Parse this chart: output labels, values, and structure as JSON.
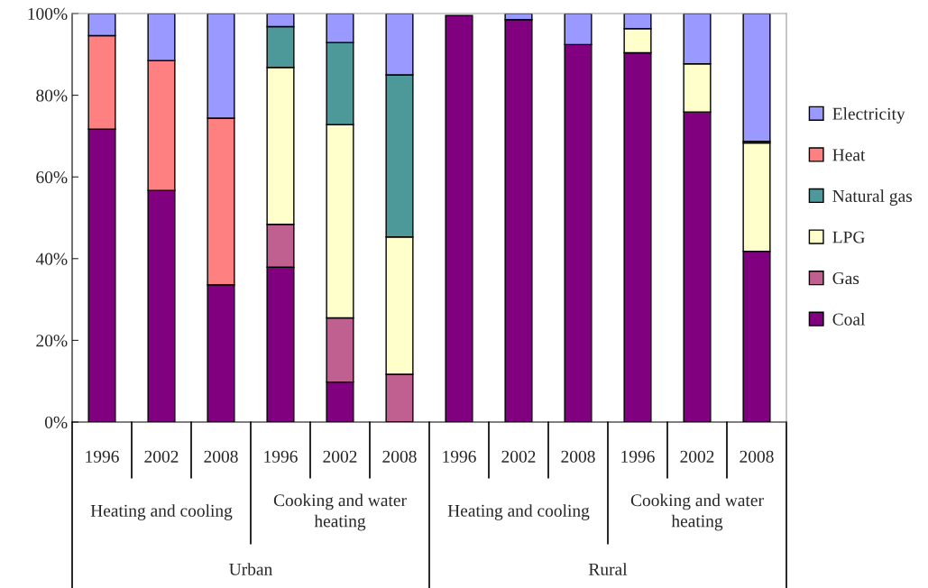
{
  "chart_data": {
    "type": "bar",
    "stacked": true,
    "categories": [
      "1996",
      "2002",
      "2008",
      "1996",
      "2002",
      "2008",
      "1996",
      "2002",
      "2008",
      "1996",
      "2002",
      "2008"
    ],
    "series": [
      {
        "name": "Coal",
        "color": "#800080",
        "values": [
          71.7,
          56.7,
          33.6,
          37.9,
          9.8,
          0,
          99.5,
          98.5,
          92.4,
          90.4,
          75.9,
          41.8
        ]
      },
      {
        "name": "Gas",
        "color": "#c06090",
        "values": [
          0,
          0,
          0,
          10.5,
          15.7,
          11.7,
          0,
          0,
          0,
          0,
          0,
          0
        ]
      },
      {
        "name": "LPG",
        "color": "#ffffcc",
        "values": [
          0,
          0,
          0,
          38.4,
          47.3,
          33.6,
          0,
          0,
          0,
          5.9,
          11.8,
          26.5
        ]
      },
      {
        "name": "Natural gas",
        "color": "#4d9999",
        "values": [
          0,
          0,
          0,
          10.0,
          20.1,
          39.7,
          0,
          0,
          0,
          0,
          0,
          0.4
        ]
      },
      {
        "name": "Heat",
        "color": "#ff8080",
        "values": [
          22.9,
          31.8,
          40.8,
          0,
          0,
          0,
          0,
          0,
          0,
          0,
          0,
          0
        ]
      },
      {
        "name": "Electricity",
        "color": "#9999ff",
        "values": [
          5.4,
          11.5,
          25.6,
          3.2,
          7.1,
          15.0,
          null,
          1.5,
          7.6,
          3.7,
          12.3,
          31.3
        ]
      }
    ],
    "ylim": [
      0,
      100
    ],
    "yticks": [
      {
        "value": 0,
        "label": "0%"
      },
      {
        "value": 20,
        "label": "20%"
      },
      {
        "value": 40,
        "label": "40%"
      },
      {
        "value": 60,
        "label": "60%"
      },
      {
        "value": 80,
        "label": "80%"
      },
      {
        "value": 100,
        "label": "100%"
      }
    ],
    "annotations": [
      "Heating and cooling",
      "Cooking and water heating",
      "Heating and cooling",
      "Cooking and water heating",
      "Urban",
      "Rural"
    ],
    "legend": "right",
    "grid": false
  }
}
